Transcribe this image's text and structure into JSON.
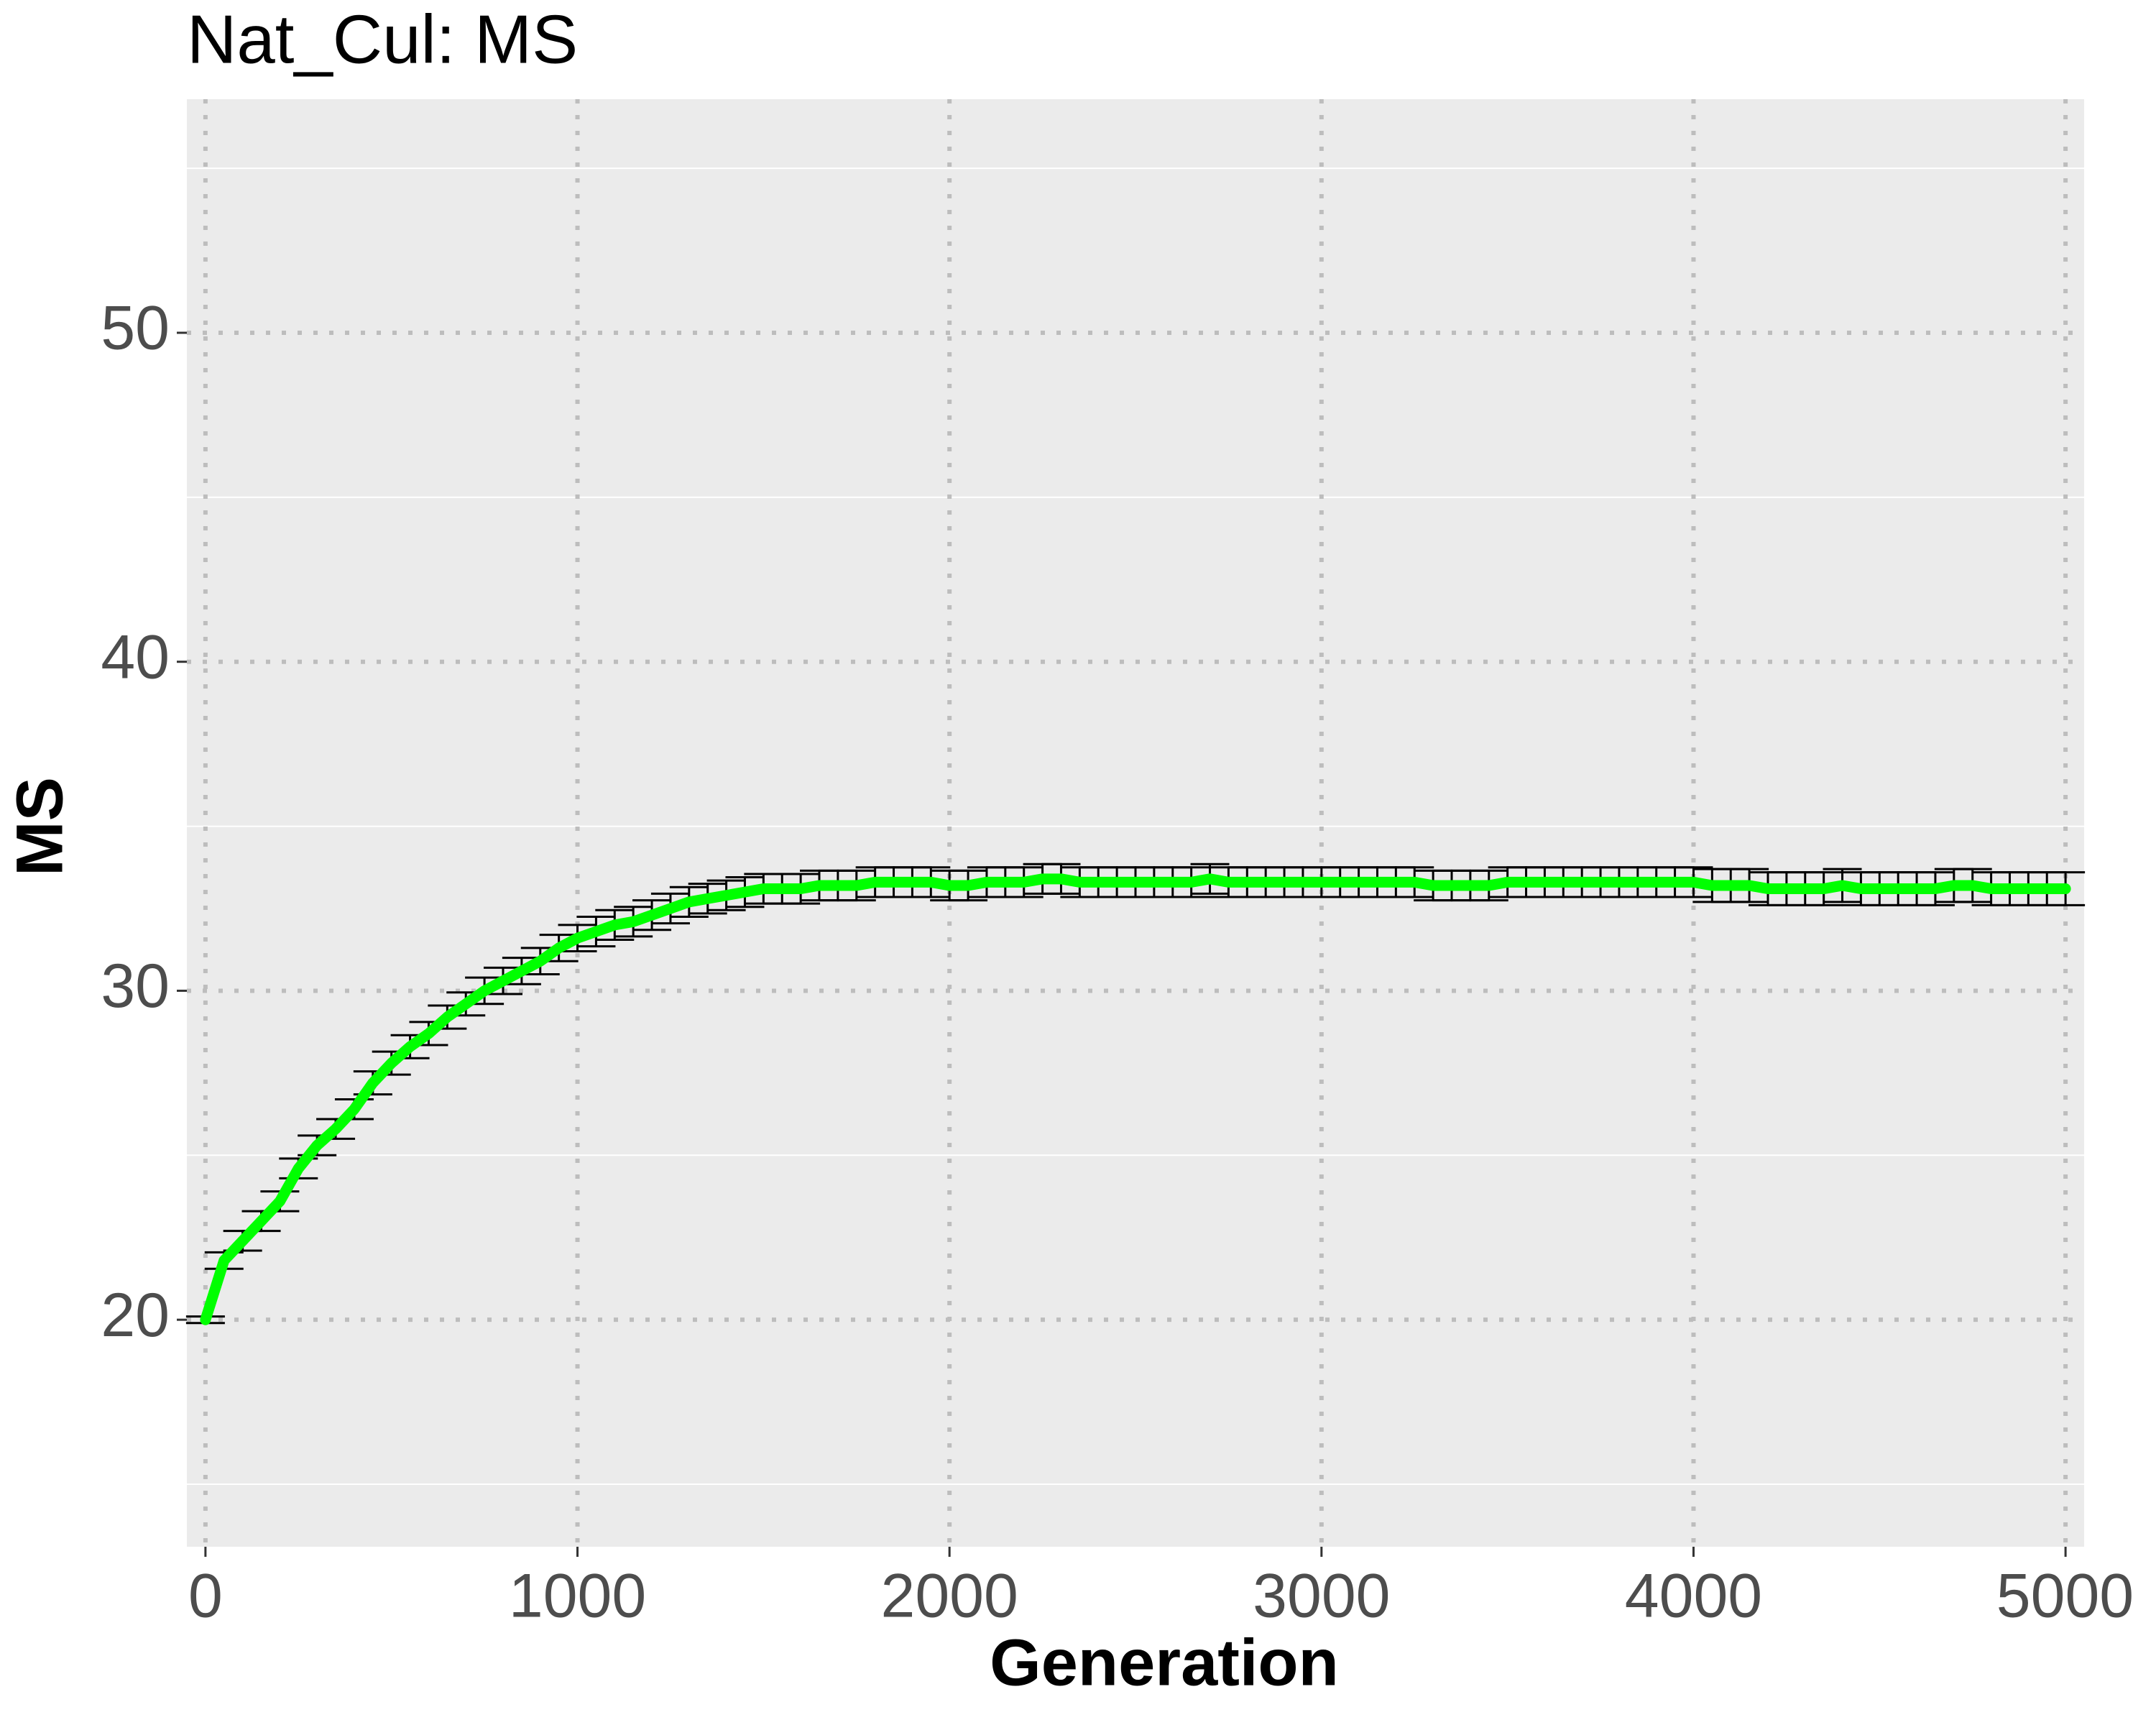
{
  "chart_data": {
    "type": "line",
    "title": "Nat_Cul: MS",
    "xlabel": "Generation",
    "ylabel": "MS",
    "x": [
      0,
      50,
      100,
      150,
      200,
      250,
      300,
      350,
      400,
      450,
      500,
      550,
      600,
      650,
      700,
      750,
      800,
      850,
      900,
      950,
      1000,
      1050,
      1100,
      1150,
      1200,
      1250,
      1300,
      1350,
      1400,
      1450,
      1500,
      1550,
      1600,
      1650,
      1700,
      1750,
      1800,
      1850,
      1900,
      1950,
      2000,
      2050,
      2100,
      2150,
      2200,
      2250,
      2300,
      2350,
      2400,
      2450,
      2500,
      2550,
      2600,
      2650,
      2700,
      2750,
      2800,
      2850,
      2900,
      2950,
      3000,
      3050,
      3100,
      3150,
      3200,
      3250,
      3300,
      3350,
      3400,
      3450,
      3500,
      3550,
      3600,
      3650,
      3700,
      3750,
      3800,
      3850,
      3900,
      3950,
      4000,
      4050,
      4100,
      4150,
      4200,
      4250,
      4300,
      4350,
      4400,
      4450,
      4500,
      4550,
      4600,
      4650,
      4700,
      4750,
      4800,
      4850,
      4900,
      4950,
      5000
    ],
    "series": [
      {
        "name": "MS",
        "color": "#00ff00",
        "values": [
          20.0,
          21.8,
          22.4,
          23.0,
          23.6,
          24.6,
          25.3,
          25.8,
          26.4,
          27.2,
          27.8,
          28.3,
          28.7,
          29.2,
          29.6,
          30.0,
          30.3,
          30.6,
          30.9,
          31.3,
          31.6,
          31.8,
          32.0,
          32.1,
          32.3,
          32.5,
          32.7,
          32.8,
          32.9,
          33.0,
          33.1,
          33.1,
          33.1,
          33.2,
          33.2,
          33.2,
          33.3,
          33.3,
          33.3,
          33.3,
          33.2,
          33.2,
          33.3,
          33.3,
          33.3,
          33.4,
          33.4,
          33.3,
          33.3,
          33.3,
          33.3,
          33.3,
          33.3,
          33.3,
          33.4,
          33.3,
          33.3,
          33.3,
          33.3,
          33.3,
          33.3,
          33.3,
          33.3,
          33.3,
          33.3,
          33.3,
          33.2,
          33.2,
          33.2,
          33.2,
          33.3,
          33.3,
          33.3,
          33.3,
          33.3,
          33.3,
          33.3,
          33.3,
          33.3,
          33.3,
          33.3,
          33.2,
          33.2,
          33.2,
          33.1,
          33.1,
          33.1,
          33.1,
          33.2,
          33.1,
          33.1,
          33.1,
          33.1,
          33.1,
          33.2,
          33.2,
          33.1,
          33.1,
          33.1,
          33.1,
          33.1
        ],
        "errors": [
          0.1,
          0.25,
          0.3,
          0.3,
          0.3,
          0.3,
          0.3,
          0.3,
          0.3,
          0.35,
          0.35,
          0.35,
          0.35,
          0.35,
          0.35,
          0.4,
          0.4,
          0.4,
          0.4,
          0.4,
          0.4,
          0.45,
          0.45,
          0.45,
          0.45,
          0.45,
          0.45,
          0.45,
          0.45,
          0.45,
          0.45,
          0.45,
          0.45,
          0.45,
          0.45,
          0.45,
          0.45,
          0.45,
          0.45,
          0.45,
          0.45,
          0.45,
          0.45,
          0.45,
          0.45,
          0.45,
          0.45,
          0.45,
          0.45,
          0.45,
          0.45,
          0.45,
          0.45,
          0.45,
          0.45,
          0.45,
          0.45,
          0.45,
          0.45,
          0.45,
          0.45,
          0.45,
          0.45,
          0.45,
          0.45,
          0.45,
          0.45,
          0.45,
          0.45,
          0.45,
          0.45,
          0.45,
          0.45,
          0.45,
          0.45,
          0.45,
          0.45,
          0.45,
          0.45,
          0.45,
          0.45,
          0.5,
          0.5,
          0.5,
          0.5,
          0.5,
          0.5,
          0.5,
          0.5,
          0.5,
          0.5,
          0.5,
          0.5,
          0.5,
          0.5,
          0.5,
          0.5,
          0.5,
          0.5,
          0.5,
          0.5
        ]
      }
    ],
    "xlim": [
      -50,
      5050
    ],
    "xticks": [
      0,
      1000,
      2000,
      3000,
      4000,
      5000
    ],
    "ylim": [
      13.1,
      57.1
    ],
    "yticks": [
      20,
      30,
      40,
      50
    ],
    "y_minor_ticks": [
      15,
      25,
      35,
      45,
      55
    ],
    "grid": true,
    "error_color": "#000000"
  }
}
